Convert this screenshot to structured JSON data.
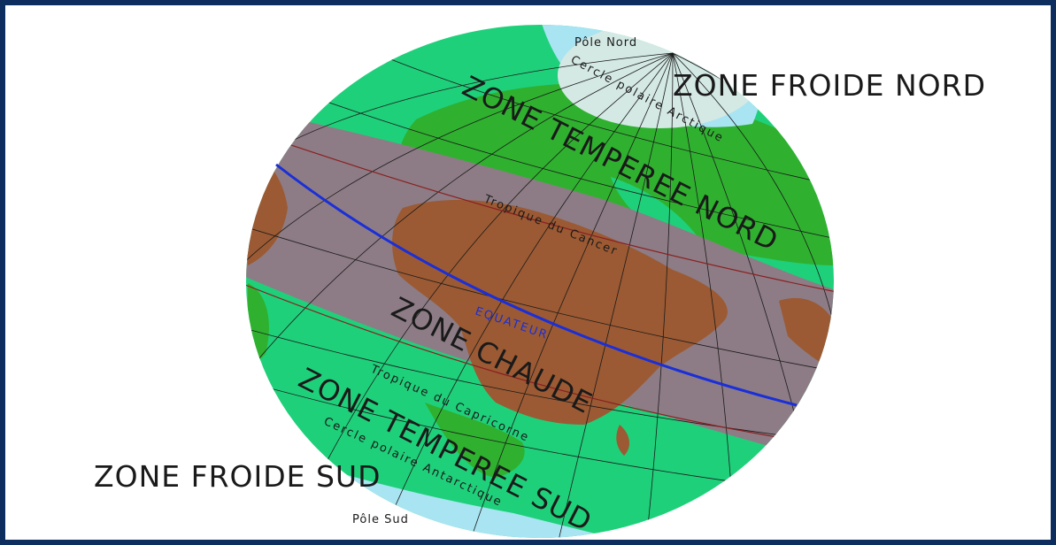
{
  "diagram": {
    "labels": {
      "north_pole": "Pôle Nord",
      "south_pole": "Pôle Sud",
      "arctic_circle": "Cercle polaire Arctique",
      "antarctic_circle": "Cercle polaire Antarctique",
      "tropic_cancer": "Tropique du Cancer",
      "tropic_capricorn": "Tropique du Capricorne",
      "equator": "EQUATEUR",
      "zone_cold_north": "ZONE FROIDE NORD",
      "zone_temperate_north": "ZONE TEMPEREE NORD",
      "zone_hot": "ZONE CHAUDE",
      "zone_temperate_south": "ZONE TEMPEREE SUD",
      "zone_cold_south": "ZONE FROIDE SUD"
    },
    "colors": {
      "frame": "#0c2d5e",
      "ocean_temperate": "#1fd07a",
      "land_temperate": "#2fb12f",
      "ocean_hot": "#8d7c85",
      "land_hot": "#9b5a33",
      "polar": "#a9e4f2",
      "polar_land": "#d4e9e4",
      "equator": "#1a2fd8",
      "tropic": "#8a2020",
      "grid": "#1a1a1a"
    }
  }
}
